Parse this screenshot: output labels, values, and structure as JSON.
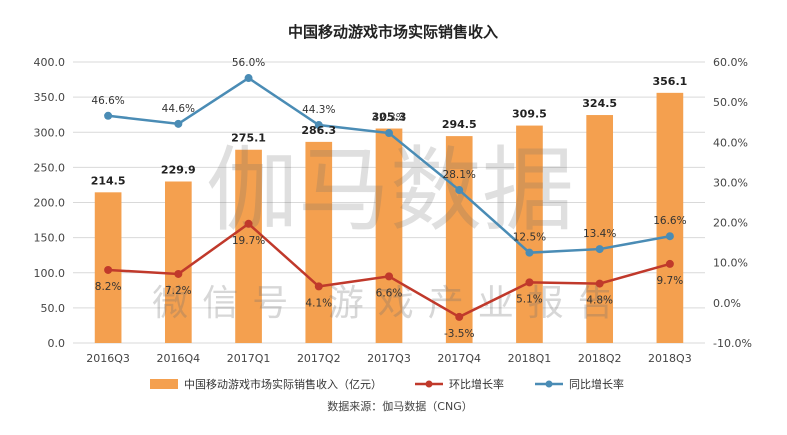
{
  "chart_data": {
    "type": "bar",
    "title": "中国移动游戏市场实际销售收入",
    "categories": [
      "2016Q3",
      "2016Q4",
      "2017Q1",
      "2017Q2",
      "2017Q3",
      "2017Q4",
      "2018Q1",
      "2018Q2",
      "2018Q3"
    ],
    "series": [
      {
        "name": "中国移动游戏市场实际销售收入（亿元）",
        "type": "bar",
        "axis": "left",
        "color": "#f4a04f",
        "values": [
          214.5,
          229.9,
          275.1,
          286.3,
          305.3,
          294.5,
          309.5,
          324.5,
          356.1
        ],
        "labels": [
          "214.5",
          "229.9",
          "275.1",
          "286.3",
          "305.3",
          "294.5",
          "309.5",
          "324.5",
          "356.1"
        ]
      },
      {
        "name": "环比增长率",
        "type": "line",
        "axis": "right",
        "color": "#c0392b",
        "values": [
          8.2,
          7.2,
          19.7,
          4.1,
          6.6,
          -3.5,
          5.1,
          4.8,
          9.7
        ],
        "labels": [
          "8.2%",
          "7.2%",
          "19.7%",
          "4.1%",
          "6.6%",
          "-3.5%",
          "5.1%",
          "4.8%",
          "9.7%"
        ]
      },
      {
        "name": "同比增长率",
        "type": "line",
        "axis": "right",
        "color": "#4a8cb5",
        "values": [
          46.6,
          44.6,
          56.0,
          44.3,
          42.3,
          28.1,
          12.5,
          13.4,
          16.6
        ],
        "labels": [
          "46.6%",
          "44.6%",
          "56.0%",
          "44.3%",
          "42.3%",
          "28.1%",
          "12.5%",
          "13.4%",
          "16.6%"
        ]
      }
    ],
    "left_axis": {
      "min": 0,
      "max": 400,
      "ticks": [
        "0.0",
        "50.0",
        "100.0",
        "150.0",
        "200.0",
        "250.0",
        "300.0",
        "350.0",
        "400.0"
      ]
    },
    "right_axis": {
      "min": -10,
      "max": 60,
      "ticks": [
        "-10.0%",
        "0.0%",
        "10.0%",
        "20.0%",
        "30.0%",
        "40.0%",
        "50.0%",
        "60.0%"
      ]
    },
    "grid": true,
    "legend_position": "bottom"
  },
  "watermark": {
    "main": "伽马数据",
    "sub": "微信号 游戏产业报告"
  },
  "source_note": "数据来源：伽马数据（CNG）"
}
